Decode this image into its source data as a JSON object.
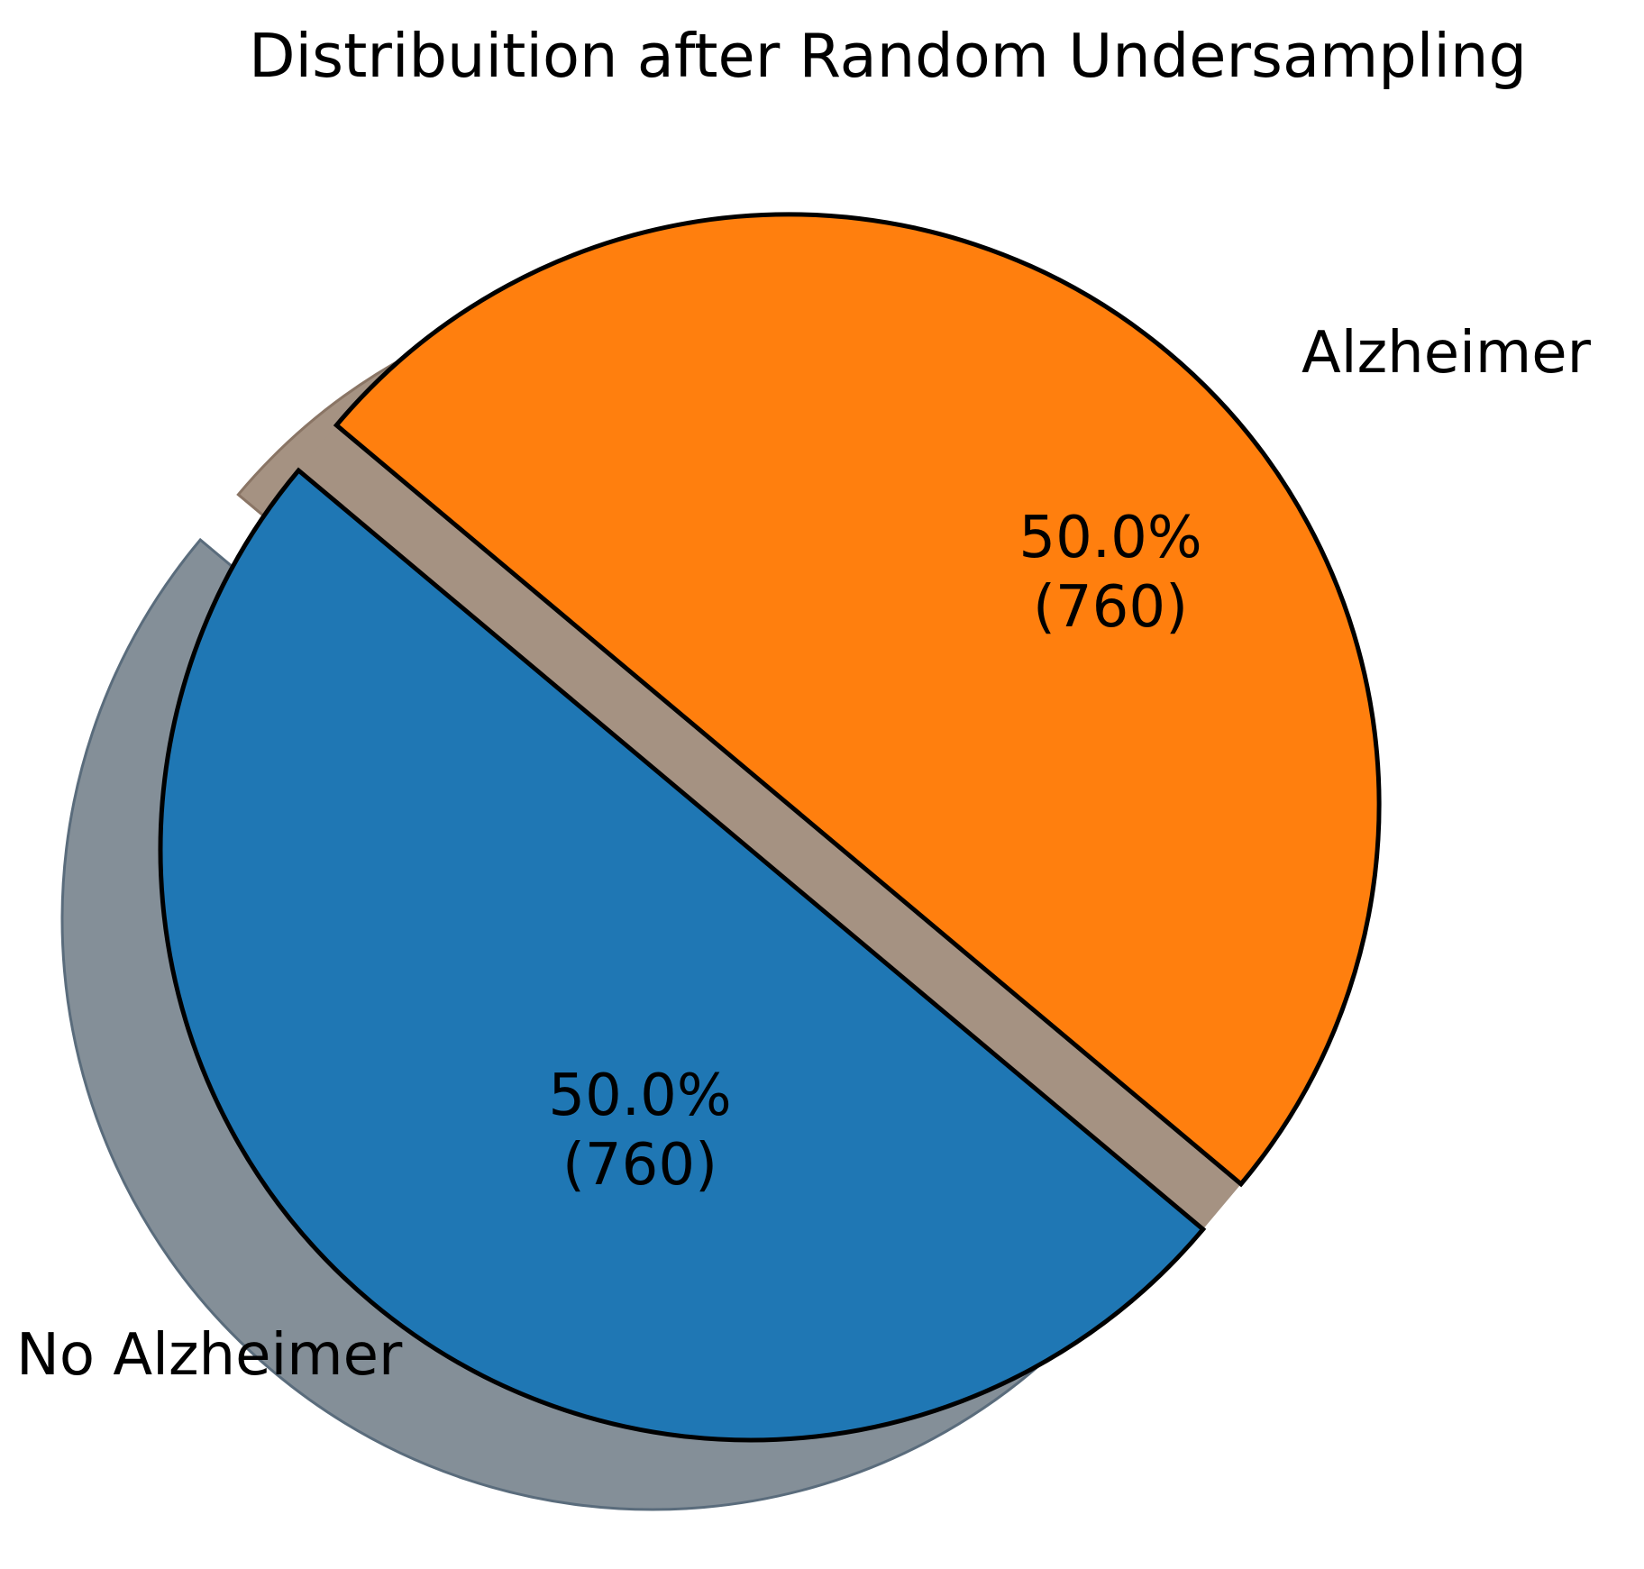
{
  "chart_data": {
    "type": "pie",
    "title": "Distribuition after Random Undersampling",
    "categories": [
      "No Alzheimer",
      "Alzheimer"
    ],
    "values": [
      760,
      760
    ],
    "percentages": [
      "50.0%",
      "50.0%"
    ],
    "value_labels": [
      "(760)",
      "(760)"
    ],
    "colors": [
      "#1f77b4",
      "#ff7f0e"
    ],
    "edge_color": "#000000",
    "shadow_color": "#848f98",
    "gap_color": "#a59282",
    "start_angle_deg": 140,
    "explode": [
      0,
      0.1
    ],
    "shadow": true
  }
}
